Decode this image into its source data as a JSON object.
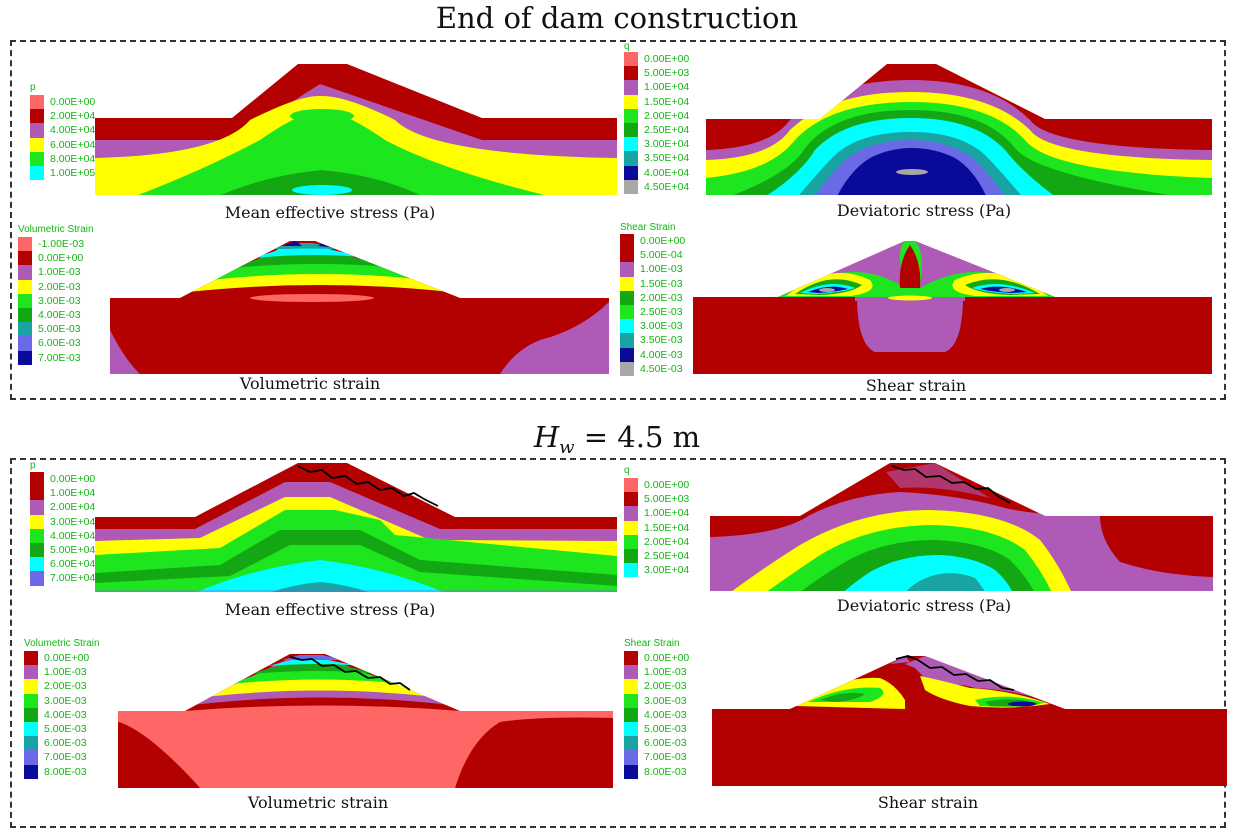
{
  "section1": {
    "title": "End of dam construction",
    "panels": {
      "mean": {
        "caption": "Mean effective stress (Pa)",
        "legend_title": "p",
        "labels": [
          "0.00E+00",
          "2.00E+04",
          "4.00E+04",
          "6.00E+04",
          "8.00E+04",
          "1.00E+05"
        ]
      },
      "dev": {
        "caption": "Deviatoric stress (Pa)",
        "legend_title": "q",
        "labels": [
          "0.00E+00",
          "5.00E+03",
          "1.00E+04",
          "1.50E+04",
          "2.00E+04",
          "2.50E+04",
          "3.00E+04",
          "3.50E+04",
          "4.00E+04",
          "4.50E+04"
        ]
      },
      "vol": {
        "caption": "Volumetric strain",
        "legend_title": "Volumetric Strain",
        "labels": [
          "-1.00E-03",
          "0.00E+00",
          "1.00E-03",
          "2.00E-03",
          "3.00E-03",
          "4.00E-03",
          "5.00E-03",
          "6.00E-03",
          "7.00E-03"
        ]
      },
      "shear": {
        "caption": "Shear strain",
        "legend_title": "Shear Strain",
        "labels": [
          "0.00E+00",
          "5.00E-04",
          "1.00E-03",
          "1.50E-03",
          "2.00E-03",
          "2.50E-03",
          "3.00E-03",
          "3.50E-03",
          "4.00E-03",
          "4.50E-03"
        ]
      }
    }
  },
  "section2": {
    "title_main": "H",
    "title_sub": "w",
    "title_rest": " = 4.5 m",
    "panels": {
      "mean": {
        "caption": "Mean effective stress (Pa)",
        "legend_title": "p",
        "labels": [
          "0.00E+00",
          "1.00E+04",
          "2.00E+04",
          "3.00E+04",
          "4.00E+04",
          "5.00E+04",
          "6.00E+04",
          "7.00E+04"
        ]
      },
      "dev": {
        "caption": "Deviatoric stress (Pa)",
        "legend_title": "q",
        "labels": [
          "0.00E+00",
          "5.00E+03",
          "1.00E+04",
          "1.50E+04",
          "2.00E+04",
          "2.50E+04",
          "3.00E+04"
        ]
      },
      "vol": {
        "caption": "Volumetric strain",
        "legend_title": "Volumetric Strain",
        "labels": [
          "0.00E+00",
          "1.00E-03",
          "2.00E-03",
          "3.00E-03",
          "4.00E-03",
          "5.00E-03",
          "6.00E-03",
          "7.00E-03",
          "8.00E-03"
        ]
      },
      "shear": {
        "caption": "Shear strain",
        "legend_title": "Shear Strain",
        "labels": [
          "0.00E+00",
          "1.00E-03",
          "2.00E-03",
          "3.00E-03",
          "4.00E-03",
          "5.00E-03",
          "6.00E-03",
          "7.00E-03",
          "8.00E-03"
        ]
      }
    }
  },
  "colors": {
    "red": "#b30000",
    "salmon": "#ff6666",
    "magenta": "#b05ab8",
    "yellow": "#ffff00",
    "lightgreen": "#1ee61e",
    "green": "#13a813",
    "cyan": "#00ffff",
    "teal": "#1aa3a3",
    "slate": "#6a6ae6",
    "navy": "#0a0a9a",
    "grey": "#a8a8a8"
  }
}
